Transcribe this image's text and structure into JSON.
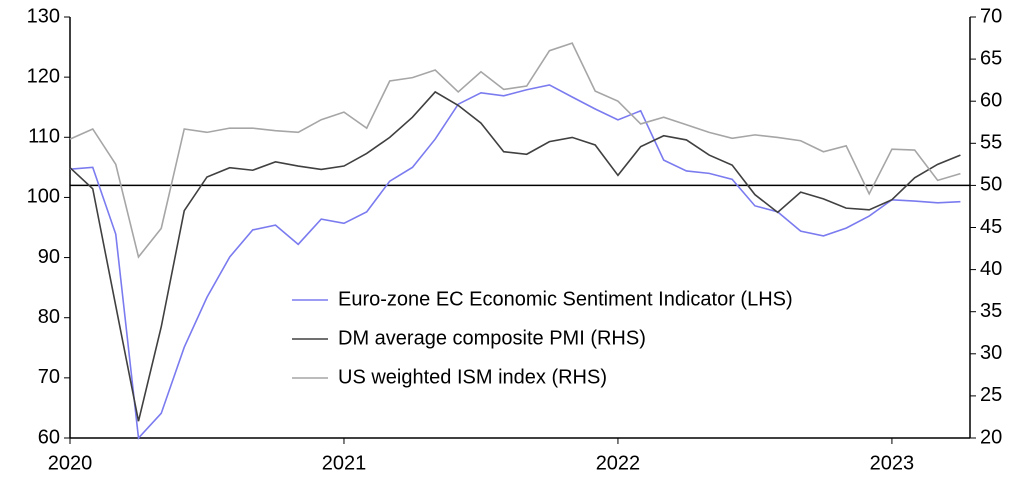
{
  "chart_data": {
    "type": "line",
    "x": [
      2020,
      2020.083,
      2020.167,
      2020.25,
      2020.333,
      2020.417,
      2020.5,
      2020.583,
      2020.667,
      2020.75,
      2020.833,
      2020.917,
      2021,
      2021.083,
      2021.167,
      2021.25,
      2021.333,
      2021.417,
      2021.5,
      2021.583,
      2021.667,
      2021.75,
      2021.833,
      2021.917,
      2022,
      2022.083,
      2022.167,
      2022.25,
      2022.333,
      2022.417,
      2022.5,
      2022.583,
      2022.667,
      2022.75,
      2022.833,
      2022.917,
      2023,
      2023.083,
      2023.167,
      2023.25
    ],
    "xlim": [
      2020,
      2023.285
    ],
    "xticks": [
      2020,
      2021,
      2022,
      2023
    ],
    "ylim": [
      60,
      130
    ],
    "yticks": [
      60,
      70,
      80,
      90,
      100,
      110,
      120,
      130
    ],
    "y2lim": [
      20,
      70
    ],
    "y2ticks": [
      20,
      25,
      30,
      35,
      40,
      45,
      50,
      55,
      60,
      65,
      70
    ],
    "reference_line": {
      "axis": "y2",
      "value": 50,
      "color": "#000000"
    },
    "legend": "lower right",
    "series": [
      {
        "name": "Euro-zone EC Economic Sentiment Indicator (LHS)",
        "color": "#7b7bf0",
        "values": [
          104.7,
          105.0,
          93.9,
          60.0,
          64.1,
          75.1,
          83.4,
          90.1,
          94.6,
          95.4,
          92.2,
          96.4,
          95.7,
          97.6,
          102.7,
          105.0,
          109.7,
          115.5,
          117.4,
          116.9,
          117.9,
          118.7,
          116.7,
          114.7,
          112.9,
          114.4,
          106.2,
          104.4,
          104.0,
          103.0,
          98.6,
          97.6,
          94.4,
          93.6,
          94.9,
          96.9,
          99.6,
          99.4,
          99.1,
          99.3
        ]
      },
      {
        "name": "DM average composite PMI (RHS)",
        "color": "#404040",
        "axis": "y2",
        "values": [
          52.1,
          49.6,
          35.7,
          22.0,
          33.2,
          47.0,
          51.0,
          52.1,
          51.8,
          52.8,
          52.3,
          51.9,
          52.3,
          53.8,
          55.7,
          58.1,
          61.1,
          59.5,
          57.4,
          54.0,
          53.7,
          55.2,
          55.7,
          54.8,
          51.2,
          54.6,
          55.9,
          55.4,
          53.6,
          52.4,
          48.9,
          46.8,
          49.2,
          48.4,
          47.3,
          47.1,
          48.3,
          50.9,
          52.5,
          53.6
        ]
      },
      {
        "name": "US weighted ISM index (RHS)",
        "color": "#a6a6a6",
        "axis": "y2",
        "values": [
          55.5,
          56.7,
          52.5,
          41.5,
          44.9,
          56.7,
          56.3,
          56.8,
          56.8,
          56.5,
          56.3,
          57.8,
          58.7,
          56.8,
          62.4,
          62.8,
          63.7,
          61.1,
          63.5,
          61.4,
          61.8,
          66.0,
          66.9,
          61.2,
          60.0,
          57.3,
          58.1,
          57.2,
          56.3,
          55.6,
          56.0,
          55.7,
          55.3,
          54.0,
          54.7,
          49.0,
          54.3,
          54.2,
          50.6,
          51.4
        ]
      }
    ]
  }
}
